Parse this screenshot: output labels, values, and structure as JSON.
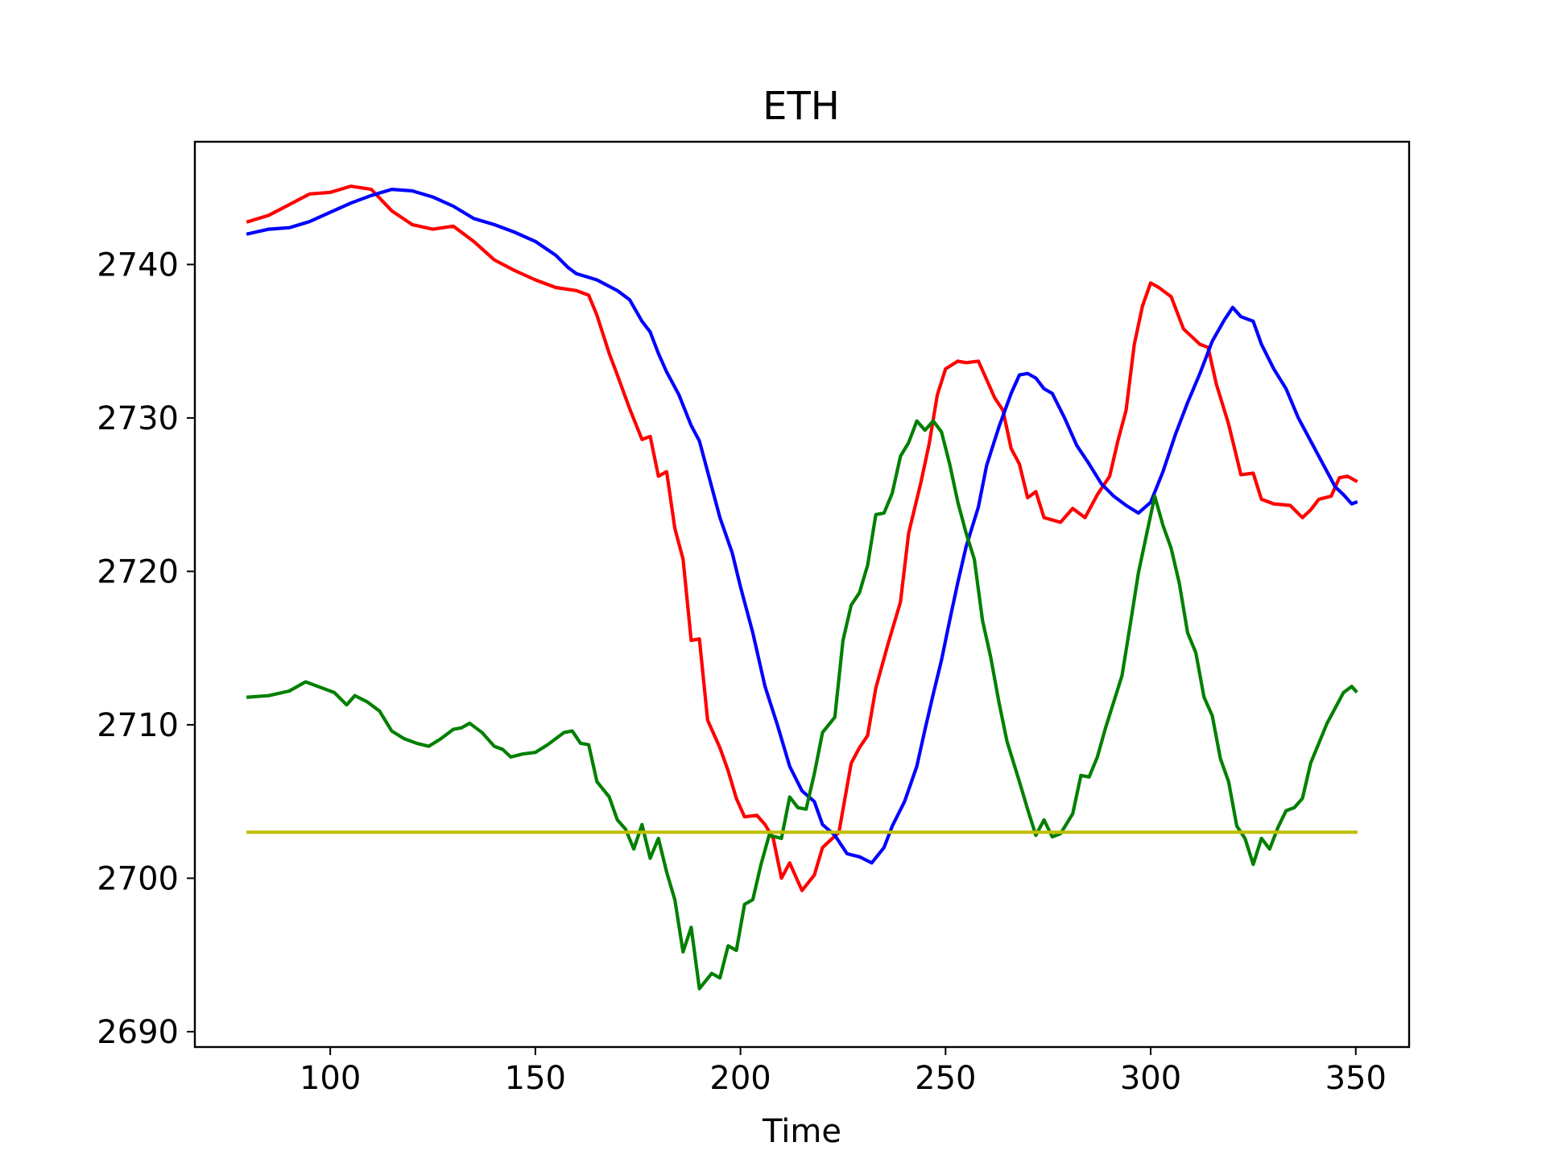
{
  "chart_data": {
    "type": "line",
    "title": "ETH",
    "xlabel": "Time",
    "ylabel": "",
    "xlim": [
      67,
      363
    ],
    "ylim": [
      2689,
      2748
    ],
    "xticks": [
      100,
      150,
      200,
      250,
      300,
      350
    ],
    "yticks": [
      2690,
      2700,
      2710,
      2720,
      2730,
      2740
    ],
    "grid": false,
    "legend": "none",
    "series": [
      {
        "color": "#ff0000",
        "points": [
          [
            80,
            2742.8
          ],
          [
            85,
            2743.2
          ],
          [
            90,
            2743.9
          ],
          [
            95,
            2744.6
          ],
          [
            100,
            2744.7
          ],
          [
            105,
            2745.1
          ],
          [
            110,
            2744.9
          ],
          [
            115,
            2743.5
          ],
          [
            120,
            2742.6
          ],
          [
            125,
            2742.3
          ],
          [
            130,
            2742.5
          ],
          [
            135,
            2741.5
          ],
          [
            140,
            2740.3
          ],
          [
            145,
            2739.6
          ],
          [
            150,
            2739.0
          ],
          [
            155,
            2738.5
          ],
          [
            160,
            2738.3
          ],
          [
            163,
            2738.0
          ],
          [
            165,
            2736.7
          ],
          [
            168,
            2734.2
          ],
          [
            170,
            2732.8
          ],
          [
            173,
            2730.6
          ],
          [
            176,
            2728.6
          ],
          [
            178,
            2728.8
          ],
          [
            180,
            2726.2
          ],
          [
            182,
            2726.5
          ],
          [
            184,
            2722.8
          ],
          [
            186,
            2720.8
          ],
          [
            188,
            2715.5
          ],
          [
            190,
            2715.6
          ],
          [
            192,
            2710.3
          ],
          [
            195,
            2708.5
          ],
          [
            197,
            2707.0
          ],
          [
            199,
            2705.2
          ],
          [
            201,
            2704.0
          ],
          [
            204,
            2704.1
          ],
          [
            206,
            2703.5
          ],
          [
            208,
            2702.6
          ],
          [
            210,
            2700.0
          ],
          [
            212,
            2701.0
          ],
          [
            215,
            2699.2
          ],
          [
            218,
            2700.2
          ],
          [
            220,
            2702.0
          ],
          [
            224,
            2703.0
          ],
          [
            227,
            2707.5
          ],
          [
            229,
            2708.5
          ],
          [
            231,
            2709.3
          ],
          [
            233,
            2712.4
          ],
          [
            236,
            2715.3
          ],
          [
            239,
            2718.0
          ],
          [
            241,
            2722.5
          ],
          [
            244,
            2725.8
          ],
          [
            246,
            2728.3
          ],
          [
            248,
            2731.5
          ],
          [
            250,
            2733.2
          ],
          [
            253,
            2733.7
          ],
          [
            255,
            2733.6
          ],
          [
            258,
            2733.7
          ],
          [
            260,
            2732.5
          ],
          [
            262,
            2731.3
          ],
          [
            264,
            2730.5
          ],
          [
            266,
            2728.0
          ],
          [
            268,
            2727.0
          ],
          [
            270,
            2724.8
          ],
          [
            272,
            2725.2
          ],
          [
            274,
            2723.5
          ],
          [
            278,
            2723.2
          ],
          [
            281,
            2724.1
          ],
          [
            284,
            2723.5
          ],
          [
            287,
            2725.0
          ],
          [
            290,
            2726.2
          ],
          [
            292,
            2728.5
          ],
          [
            294,
            2730.5
          ],
          [
            296,
            2734.8
          ],
          [
            298,
            2737.3
          ],
          [
            300,
            2738.8
          ],
          [
            302,
            2738.5
          ],
          [
            305,
            2737.9
          ],
          [
            308,
            2735.8
          ],
          [
            312,
            2734.8
          ],
          [
            314,
            2734.6
          ],
          [
            316,
            2732.2
          ],
          [
            319,
            2729.6
          ],
          [
            322,
            2726.3
          ],
          [
            325,
            2726.4
          ],
          [
            327,
            2724.7
          ],
          [
            330,
            2724.4
          ],
          [
            334,
            2724.3
          ],
          [
            337,
            2723.5
          ],
          [
            339,
            2724.0
          ],
          [
            341,
            2724.7
          ],
          [
            344,
            2724.9
          ],
          [
            346,
            2726.1
          ],
          [
            348,
            2726.2
          ],
          [
            350,
            2725.9
          ]
        ]
      },
      {
        "color": "#0000ff",
        "points": [
          [
            80,
            2742.0
          ],
          [
            85,
            2742.3
          ],
          [
            90,
            2742.4
          ],
          [
            95,
            2742.8
          ],
          [
            100,
            2743.4
          ],
          [
            105,
            2744.0
          ],
          [
            110,
            2744.5
          ],
          [
            115,
            2744.9
          ],
          [
            120,
            2744.8
          ],
          [
            125,
            2744.4
          ],
          [
            130,
            2743.8
          ],
          [
            135,
            2743.0
          ],
          [
            140,
            2742.6
          ],
          [
            145,
            2742.1
          ],
          [
            150,
            2741.5
          ],
          [
            155,
            2740.6
          ],
          [
            158,
            2739.8
          ],
          [
            160,
            2739.4
          ],
          [
            165,
            2739.0
          ],
          [
            170,
            2738.3
          ],
          [
            173,
            2737.7
          ],
          [
            176,
            2736.3
          ],
          [
            178,
            2735.6
          ],
          [
            180,
            2734.2
          ],
          [
            182,
            2733.0
          ],
          [
            185,
            2731.5
          ],
          [
            188,
            2729.5
          ],
          [
            190,
            2728.5
          ],
          [
            192,
            2726.5
          ],
          [
            195,
            2723.5
          ],
          [
            198,
            2721.2
          ],
          [
            200,
            2719.0
          ],
          [
            203,
            2716.0
          ],
          [
            206,
            2712.5
          ],
          [
            209,
            2710.0
          ],
          [
            212,
            2707.3
          ],
          [
            215,
            2705.7
          ],
          [
            218,
            2705.0
          ],
          [
            220,
            2703.5
          ],
          [
            223,
            2702.8
          ],
          [
            226,
            2701.6
          ],
          [
            229,
            2701.4
          ],
          [
            232,
            2701.0
          ],
          [
            235,
            2702.0
          ],
          [
            237,
            2703.4
          ],
          [
            240,
            2705.0
          ],
          [
            243,
            2707.3
          ],
          [
            245,
            2709.7
          ],
          [
            247,
            2712.0
          ],
          [
            249,
            2714.2
          ],
          [
            251,
            2716.8
          ],
          [
            253,
            2719.3
          ],
          [
            255,
            2721.6
          ],
          [
            258,
            2724.2
          ],
          [
            260,
            2726.9
          ],
          [
            263,
            2729.4
          ],
          [
            266,
            2731.6
          ],
          [
            268,
            2732.8
          ],
          [
            270,
            2732.9
          ],
          [
            272,
            2732.6
          ],
          [
            274,
            2731.9
          ],
          [
            276,
            2731.6
          ],
          [
            279,
            2730.0
          ],
          [
            282,
            2728.2
          ],
          [
            285,
            2727.0
          ],
          [
            288,
            2725.7
          ],
          [
            291,
            2724.9
          ],
          [
            294,
            2724.3
          ],
          [
            297,
            2723.8
          ],
          [
            300,
            2724.5
          ],
          [
            303,
            2726.5
          ],
          [
            306,
            2728.9
          ],
          [
            309,
            2731.0
          ],
          [
            312,
            2732.9
          ],
          [
            315,
            2735.0
          ],
          [
            318,
            2736.4
          ],
          [
            320,
            2737.2
          ],
          [
            322,
            2736.6
          ],
          [
            325,
            2736.3
          ],
          [
            327,
            2734.8
          ],
          [
            330,
            2733.2
          ],
          [
            333,
            2731.9
          ],
          [
            336,
            2730.0
          ],
          [
            339,
            2728.5
          ],
          [
            342,
            2727.0
          ],
          [
            345,
            2725.5
          ],
          [
            347,
            2725.0
          ],
          [
            349,
            2724.4
          ],
          [
            350,
            2724.5
          ]
        ]
      },
      {
        "color": "#008000",
        "points": [
          [
            80,
            2711.8
          ],
          [
            85,
            2711.9
          ],
          [
            90,
            2712.2
          ],
          [
            94,
            2712.8
          ],
          [
            98,
            2712.4
          ],
          [
            101,
            2712.1
          ],
          [
            104,
            2711.3
          ],
          [
            106,
            2711.9
          ],
          [
            109,
            2711.5
          ],
          [
            112,
            2710.9
          ],
          [
            115,
            2709.6
          ],
          [
            118,
            2709.1
          ],
          [
            121,
            2708.8
          ],
          [
            124,
            2708.6
          ],
          [
            127,
            2709.1
          ],
          [
            130,
            2709.7
          ],
          [
            132,
            2709.8
          ],
          [
            134,
            2710.1
          ],
          [
            137,
            2709.5
          ],
          [
            140,
            2708.6
          ],
          [
            142,
            2708.4
          ],
          [
            144,
            2707.9
          ],
          [
            147,
            2708.1
          ],
          [
            150,
            2708.2
          ],
          [
            153,
            2708.7
          ],
          [
            155,
            2709.1
          ],
          [
            157,
            2709.5
          ],
          [
            159,
            2709.6
          ],
          [
            161,
            2708.8
          ],
          [
            163,
            2708.7
          ],
          [
            165,
            2706.3
          ],
          [
            168,
            2705.3
          ],
          [
            170,
            2703.8
          ],
          [
            172,
            2703.2
          ],
          [
            174,
            2701.9
          ],
          [
            176,
            2703.5
          ],
          [
            178,
            2701.3
          ],
          [
            180,
            2702.6
          ],
          [
            182,
            2700.4
          ],
          [
            184,
            2698.6
          ],
          [
            186,
            2695.2
          ],
          [
            188,
            2696.8
          ],
          [
            190,
            2692.8
          ],
          [
            193,
            2693.8
          ],
          [
            195,
            2693.5
          ],
          [
            197,
            2695.6
          ],
          [
            199,
            2695.3
          ],
          [
            201,
            2698.3
          ],
          [
            203,
            2698.6
          ],
          [
            205,
            2700.9
          ],
          [
            207,
            2702.8
          ],
          [
            210,
            2702.6
          ],
          [
            212,
            2705.3
          ],
          [
            214,
            2704.6
          ],
          [
            216,
            2704.5
          ],
          [
            218,
            2706.8
          ],
          [
            220,
            2709.5
          ],
          [
            223,
            2710.5
          ],
          [
            225,
            2715.5
          ],
          [
            227,
            2717.8
          ],
          [
            229,
            2718.6
          ],
          [
            231,
            2720.4
          ],
          [
            233,
            2723.7
          ],
          [
            235,
            2723.8
          ],
          [
            237,
            2725.1
          ],
          [
            239,
            2727.5
          ],
          [
            241,
            2728.4
          ],
          [
            243,
            2729.8
          ],
          [
            245,
            2729.2
          ],
          [
            247,
            2729.8
          ],
          [
            249,
            2729.1
          ],
          [
            251,
            2727.0
          ],
          [
            253,
            2724.5
          ],
          [
            255,
            2722.5
          ],
          [
            257,
            2720.8
          ],
          [
            259,
            2716.8
          ],
          [
            261,
            2714.4
          ],
          [
            263,
            2711.5
          ],
          [
            265,
            2708.9
          ],
          [
            268,
            2706.3
          ],
          [
            270,
            2704.5
          ],
          [
            272,
            2702.8
          ],
          [
            274,
            2703.8
          ],
          [
            276,
            2702.7
          ],
          [
            278,
            2702.9
          ],
          [
            281,
            2704.2
          ],
          [
            283,
            2706.7
          ],
          [
            285,
            2706.6
          ],
          [
            287,
            2707.9
          ],
          [
            289,
            2709.8
          ],
          [
            291,
            2711.5
          ],
          [
            293,
            2713.2
          ],
          [
            295,
            2716.5
          ],
          [
            297,
            2719.9
          ],
          [
            299,
            2722.4
          ],
          [
            301,
            2724.9
          ],
          [
            303,
            2723.0
          ],
          [
            305,
            2721.5
          ],
          [
            307,
            2719.2
          ],
          [
            309,
            2716.0
          ],
          [
            311,
            2714.7
          ],
          [
            313,
            2711.8
          ],
          [
            315,
            2710.6
          ],
          [
            317,
            2707.8
          ],
          [
            319,
            2706.3
          ],
          [
            321,
            2703.4
          ],
          [
            323,
            2702.6
          ],
          [
            325,
            2700.9
          ],
          [
            327,
            2702.6
          ],
          [
            329,
            2701.9
          ],
          [
            331,
            2703.3
          ],
          [
            333,
            2704.4
          ],
          [
            335,
            2704.6
          ],
          [
            337,
            2705.2
          ],
          [
            339,
            2707.5
          ],
          [
            341,
            2708.8
          ],
          [
            343,
            2710.1
          ],
          [
            345,
            2711.1
          ],
          [
            347,
            2712.1
          ],
          [
            349,
            2712.5
          ],
          [
            350,
            2712.2
          ]
        ]
      },
      {
        "color": "#bfbf00",
        "points": [
          [
            80,
            2703.0
          ],
          [
            350,
            2703.0
          ]
        ]
      }
    ]
  }
}
